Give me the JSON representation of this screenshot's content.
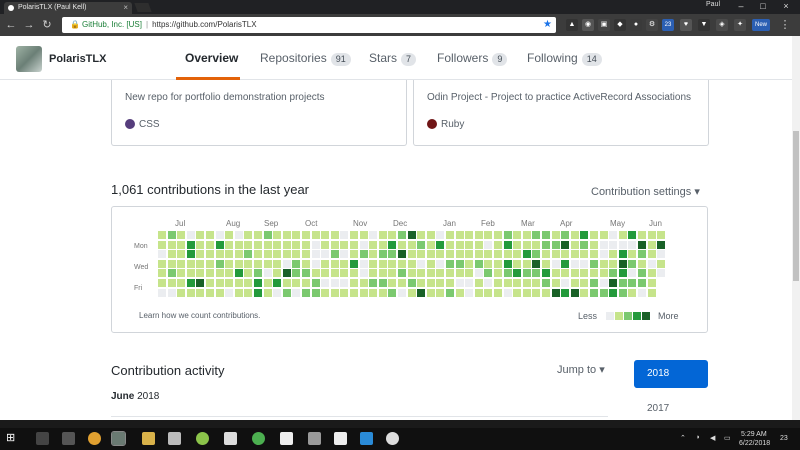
{
  "browser": {
    "tab_title": "PolarisTLX (Paul Kell)",
    "user": "Paul",
    "site_identity": "GitHub, Inc. [US]",
    "url": "https://github.com/PolarisTLX",
    "ext_badge_1": "23",
    "ext_badge_2": "New"
  },
  "profile": {
    "username": "PolarisTLX",
    "tabs": [
      {
        "label": "Overview",
        "count": null
      },
      {
        "label": "Repositories",
        "count": "91"
      },
      {
        "label": "Stars",
        "count": "7"
      },
      {
        "label": "Followers",
        "count": "9"
      },
      {
        "label": "Following",
        "count": "14"
      }
    ]
  },
  "pinned": [
    {
      "description": "New repo for portfolio demonstration projects",
      "language": "CSS",
      "lang_color": "#563d7c"
    },
    {
      "description": "Odin Project - Project to practice ActiveRecord Associations",
      "language": "Ruby",
      "lang_color": "#701516"
    }
  ],
  "contributions": {
    "title": "1,061 contributions in the last year",
    "settings_label": "Contribution settings",
    "months": [
      "Jul",
      "Aug",
      "Sep",
      "Oct",
      "Nov",
      "Dec",
      "Jan",
      "Feb",
      "Mar",
      "Apr",
      "May",
      "Jun"
    ],
    "day_labels": [
      "Mon",
      "Wed",
      "Fri"
    ],
    "learn_label": "Learn how we count contributions.",
    "legend_less": "Less",
    "legend_more": "More",
    "level_colors": [
      "#ebedf0",
      "#c6e48b",
      "#7bc96f",
      "#239a3b",
      "#196127"
    ]
  },
  "activity": {
    "title": "Contribution activity",
    "jump_to": "Jump to",
    "month_bold": "June",
    "month_year": "2018",
    "years": [
      "2018",
      "2017"
    ]
  },
  "taskbar": {
    "time": "5:29 AM",
    "date": "6/22/2018",
    "notif_count": "23"
  }
}
